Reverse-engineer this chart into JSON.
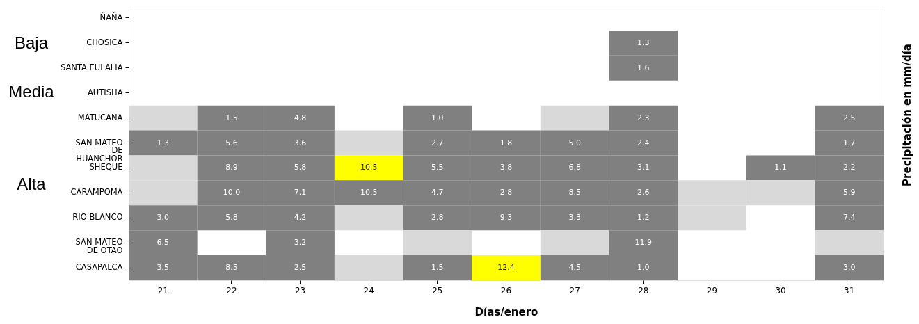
{
  "chart_data": {
    "type": "heatmap",
    "xlabel": "Días/enero",
    "ylabel": "Precipitación en mm/día",
    "annotations": [
      "Baja",
      "Media",
      "Alta"
    ],
    "data_labels": true,
    "cell_labels": [
      [
        null,
        null,
        null,
        null,
        null,
        null,
        null,
        null,
        null,
        null,
        null
      ],
      [
        null,
        null,
        null,
        null,
        null,
        null,
        null,
        "1.3",
        null,
        null,
        null
      ],
      [
        null,
        null,
        null,
        null,
        null,
        null,
        null,
        "1.6",
        null,
        null,
        null
      ],
      [
        null,
        null,
        null,
        null,
        null,
        null,
        null,
        null,
        null,
        null,
        null
      ],
      [
        null,
        "1.5",
        "4.8",
        null,
        "1.0",
        null,
        null,
        "2.3",
        null,
        null,
        "2.5"
      ],
      [
        "1.3",
        "5.6",
        "3.6",
        null,
        "2.7",
        "1.8",
        "5.0",
        "2.4",
        null,
        null,
        "1.7"
      ],
      [
        null,
        "8.9",
        "5.8",
        "10.5",
        "5.5",
        "3.8",
        "6.8",
        "3.1",
        null,
        "1.1",
        "2.2"
      ],
      [
        null,
        "10.0",
        "7.1",
        "10.5",
        "4.7",
        "2.8",
        "8.5",
        "2.6",
        null,
        null,
        "5.9"
      ],
      [
        "3.0",
        "5.8",
        "4.2",
        null,
        "2.8",
        "9.3",
        "3.3",
        "1.2",
        null,
        null,
        "7.4"
      ],
      [
        "6.5",
        null,
        "3.2",
        null,
        null,
        null,
        null,
        "11.9",
        null,
        null,
        null
      ],
      [
        "3.5",
        "8.5",
        "2.5",
        null,
        "1.5",
        "12.4",
        "4.5",
        "1.0",
        null,
        null,
        "3.0"
      ]
    ],
    "categories": [
      "21",
      "22",
      "23",
      "24",
      "25",
      "26",
      "27",
      "28",
      "29",
      "30",
      "31"
    ],
    "y_categories": [
      "ÑAÑA",
      "CHOSICA",
      "SANTA EULALIA",
      "AUTISHA",
      "MATUCANA",
      "SAN MATEO\nDE\nHUANCHOR",
      "SHEQUE",
      "CARAMPOMA",
      "RIO BLANCO",
      "SAN MATEO\nDE OTAO",
      "CASAPALCA"
    ],
    "cells": [
      [
        null,
        null,
        null,
        null,
        null,
        null,
        null,
        null,
        null,
        null,
        null
      ],
      [
        null,
        null,
        null,
        null,
        null,
        null,
        null,
        1.3,
        null,
        null,
        null
      ],
      [
        null,
        null,
        null,
        null,
        null,
        null,
        null,
        1.6,
        null,
        null,
        null
      ],
      [
        null,
        null,
        null,
        null,
        null,
        null,
        null,
        null,
        null,
        null,
        null
      ],
      [
        null,
        1.5,
        4.8,
        null,
        1.0,
        null,
        null,
        2.3,
        null,
        null,
        2.5
      ],
      [
        1.3,
        5.6,
        3.6,
        null,
        2.7,
        1.8,
        5.0,
        2.4,
        null,
        null,
        1.7
      ],
      [
        null,
        8.9,
        5.8,
        10.5,
        5.5,
        3.8,
        6.8,
        3.1,
        null,
        1.1,
        2.2
      ],
      [
        null,
        10.0,
        7.1,
        10.5,
        4.7,
        2.8,
        8.5,
        2.6,
        null,
        null,
        5.9
      ],
      [
        3.0,
        5.8,
        4.2,
        null,
        2.8,
        9.3,
        3.3,
        1.2,
        null,
        null,
        7.4
      ],
      [
        6.5,
        null,
        3.2,
        null,
        null,
        null,
        null,
        11.9,
        null,
        null,
        null
      ],
      [
        3.5,
        8.5,
        2.5,
        null,
        1.5,
        12.4,
        4.5,
        1.0,
        null,
        null,
        3.0
      ]
    ],
    "colors": [
      [
        null,
        null,
        null,
        null,
        null,
        null,
        null,
        null,
        null,
        null,
        null
      ],
      [
        null,
        null,
        null,
        null,
        null,
        null,
        null,
        "#808080",
        null,
        null,
        null
      ],
      [
        null,
        null,
        null,
        null,
        null,
        null,
        null,
        "#808080",
        null,
        null,
        null
      ],
      [
        null,
        null,
        null,
        null,
        null,
        null,
        null,
        null,
        null,
        null,
        null
      ],
      [
        "#d9d9d9",
        "#808080",
        "#808080",
        null,
        "#808080",
        null,
        "#d9d9d9",
        "#808080",
        null,
        null,
        "#808080"
      ],
      [
        "#808080",
        "#808080",
        "#808080",
        "#d9d9d9",
        "#808080",
        "#808080",
        "#808080",
        "#808080",
        null,
        null,
        "#808080"
      ],
      [
        "#d9d9d9",
        "#808080",
        "#808080",
        "#ffff00",
        "#808080",
        "#808080",
        "#808080",
        "#808080",
        null,
        "#808080",
        "#808080"
      ],
      [
        "#d9d9d9",
        "#808080",
        "#808080",
        "#808080",
        "#808080",
        "#808080",
        "#808080",
        "#808080",
        "#d9d9d9",
        "#d9d9d9",
        "#808080"
      ],
      [
        "#808080",
        "#808080",
        "#808080",
        "#d9d9d9",
        "#808080",
        "#808080",
        "#808080",
        "#808080",
        "#d9d9d9",
        null,
        "#808080"
      ],
      [
        "#808080",
        null,
        "#808080",
        null,
        "#d9d9d9",
        null,
        "#d9d9d9",
        "#808080",
        null,
        null,
        "#d9d9d9"
      ],
      [
        "#808080",
        "#808080",
        "#808080",
        "#d9d9d9",
        "#808080",
        "#ffff00",
        "#808080",
        "#808080",
        null,
        null,
        "#808080"
      ]
    ]
  }
}
